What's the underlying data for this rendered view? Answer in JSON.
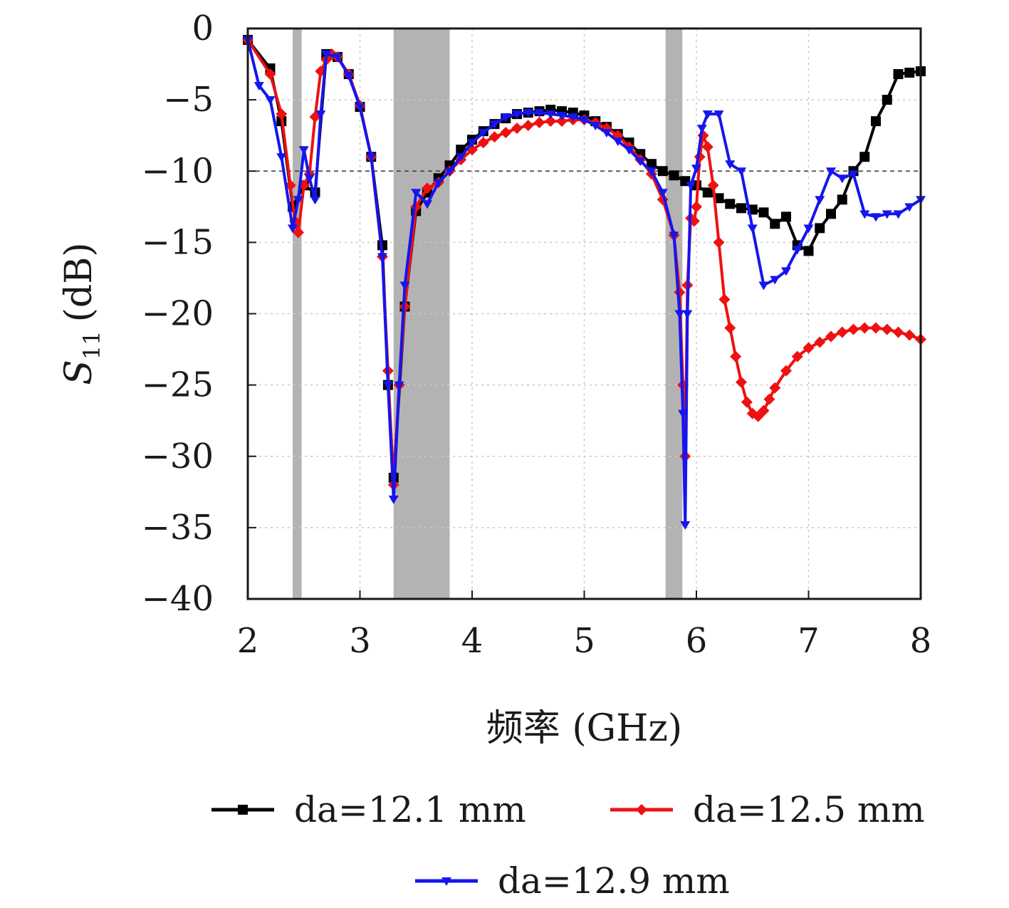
{
  "chart_data": {
    "type": "line",
    "xlabel": "频率 (GHz)",
    "ylabel": "S",
    "ylabel_sub": "11",
    "ylabel_unit": "(dB)",
    "xlim": [
      2,
      8
    ],
    "ylim": [
      -40,
      0
    ],
    "xticks": [
      2,
      3,
      4,
      5,
      6,
      7,
      8
    ],
    "yticks": [
      0,
      -5,
      -10,
      -15,
      -20,
      -25,
      -30,
      -35,
      -40
    ],
    "ytick_labels": [
      "0",
      "−5",
      "−10",
      "−15",
      "−20",
      "−25",
      "−30",
      "−35",
      "−40"
    ],
    "grid": true,
    "reference_line": -10,
    "shaded_bands": [
      [
        2.4,
        2.48
      ],
      [
        3.3,
        3.8
      ],
      [
        5.725,
        5.875
      ]
    ],
    "legend_position": "bottom",
    "series": [
      {
        "name": "da=12.1 mm",
        "color": "#000000",
        "marker": "square",
        "x": [
          2.0,
          2.2,
          2.3,
          2.4,
          2.5,
          2.6,
          2.7,
          2.8,
          2.9,
          3.0,
          3.1,
          3.2,
          3.25,
          3.3,
          3.4,
          3.5,
          3.6,
          3.7,
          3.8,
          3.9,
          4.0,
          4.1,
          4.2,
          4.3,
          4.4,
          4.5,
          4.6,
          4.7,
          4.8,
          4.9,
          5.0,
          5.1,
          5.2,
          5.3,
          5.4,
          5.5,
          5.6,
          5.7,
          5.8,
          5.9,
          6.0,
          6.1,
          6.2,
          6.3,
          6.4,
          6.5,
          6.6,
          6.7,
          6.8,
          6.9,
          7.0,
          7.1,
          7.2,
          7.3,
          7.4,
          7.5,
          7.6,
          7.7,
          7.8,
          7.9,
          8.0
        ],
        "y": [
          -0.8,
          -2.8,
          -6.5,
          -12.5,
          -11.0,
          -11.5,
          -1.8,
          -2.0,
          -3.2,
          -5.5,
          -9.0,
          -15.2,
          -25.0,
          -31.5,
          -19.5,
          -12.8,
          -11.5,
          -10.5,
          -9.6,
          -8.5,
          -7.8,
          -7.2,
          -6.7,
          -6.3,
          -6.0,
          -5.9,
          -5.8,
          -5.7,
          -5.8,
          -5.9,
          -6.1,
          -6.5,
          -6.9,
          -7.4,
          -8.0,
          -8.8,
          -9.5,
          -10.0,
          -10.3,
          -10.7,
          -11.0,
          -11.5,
          -11.9,
          -12.3,
          -12.6,
          -12.7,
          -12.9,
          -13.7,
          -13.2,
          -15.2,
          -15.6,
          -14.0,
          -13.0,
          -12.0,
          -10.0,
          -9.0,
          -6.5,
          -5.0,
          -3.2,
          -3.1,
          -3.0
        ]
      },
      {
        "name": "da=12.5 mm",
        "color": "#ee1111",
        "marker": "diamond",
        "x": [
          2.0,
          2.2,
          2.3,
          2.38,
          2.42,
          2.45,
          2.5,
          2.55,
          2.6,
          2.65,
          2.7,
          2.75,
          2.8,
          2.9,
          3.0,
          3.1,
          3.2,
          3.25,
          3.3,
          3.35,
          3.4,
          3.5,
          3.6,
          3.7,
          3.8,
          3.9,
          4.0,
          4.1,
          4.2,
          4.3,
          4.4,
          4.5,
          4.6,
          4.7,
          4.8,
          4.9,
          5.0,
          5.1,
          5.2,
          5.3,
          5.4,
          5.5,
          5.6,
          5.7,
          5.8,
          5.85,
          5.88,
          5.9,
          5.92,
          5.95,
          5.98,
          6.0,
          6.03,
          6.06,
          6.1,
          6.15,
          6.2,
          6.25,
          6.3,
          6.35,
          6.4,
          6.45,
          6.5,
          6.55,
          6.6,
          6.65,
          6.7,
          6.8,
          6.9,
          7.0,
          7.1,
          7.2,
          7.3,
          7.4,
          7.5,
          7.6,
          7.7,
          7.8,
          7.9,
          8.0
        ],
        "y": [
          -0.8,
          -3.2,
          -6.0,
          -11.0,
          -13.5,
          -14.3,
          -11.0,
          -10.2,
          -6.2,
          -3.0,
          -2.2,
          -1.8,
          -2.0,
          -3.2,
          -5.4,
          -9.0,
          -16.0,
          -24.0,
          -32.0,
          -25.0,
          -19.5,
          -12.5,
          -11.2,
          -10.8,
          -10.0,
          -9.2,
          -8.5,
          -8.0,
          -7.6,
          -7.3,
          -7.0,
          -6.8,
          -6.6,
          -6.5,
          -6.5,
          -6.4,
          -6.4,
          -6.6,
          -7.0,
          -7.5,
          -8.3,
          -9.2,
          -10.2,
          -12.0,
          -14.5,
          -18.5,
          -25.0,
          -30.0,
          -18.0,
          -13.3,
          -13.5,
          -12.5,
          -9.0,
          -7.5,
          -8.3,
          -11.0,
          -15.0,
          -19.0,
          -21.0,
          -23.0,
          -24.8,
          -26.2,
          -27.0,
          -27.2,
          -26.8,
          -26.0,
          -25.2,
          -24.0,
          -23.0,
          -22.4,
          -22.0,
          -21.6,
          -21.3,
          -21.1,
          -21.0,
          -21.0,
          -21.1,
          -21.3,
          -21.5,
          -21.8
        ]
      },
      {
        "name": "da=12.9 mm",
        "color": "#1515ee",
        "marker": "triangle-down",
        "x": [
          2.0,
          2.1,
          2.2,
          2.3,
          2.4,
          2.45,
          2.5,
          2.55,
          2.6,
          2.65,
          2.7,
          2.8,
          2.9,
          3.0,
          3.1,
          3.2,
          3.25,
          3.3,
          3.35,
          3.4,
          3.5,
          3.6,
          3.7,
          3.8,
          3.9,
          4.0,
          4.1,
          4.2,
          4.3,
          4.4,
          4.5,
          4.6,
          4.7,
          4.8,
          4.9,
          5.0,
          5.1,
          5.2,
          5.3,
          5.4,
          5.5,
          5.6,
          5.7,
          5.8,
          5.85,
          5.88,
          5.9,
          5.92,
          5.95,
          6.0,
          6.05,
          6.1,
          6.2,
          6.3,
          6.4,
          6.5,
          6.6,
          6.7,
          6.8,
          6.9,
          7.0,
          7.1,
          7.2,
          7.3,
          7.4,
          7.5,
          7.6,
          7.7,
          7.8,
          7.9,
          8.0
        ],
        "y": [
          -0.8,
          -4.0,
          -5.0,
          -9.0,
          -14.0,
          -12.0,
          -8.5,
          -10.5,
          -12.0,
          -6.0,
          -1.8,
          -2.0,
          -3.3,
          -5.5,
          -9.0,
          -16.0,
          -25.0,
          -33.0,
          -25.0,
          -18.0,
          -11.5,
          -12.3,
          -10.8,
          -10.0,
          -9.0,
          -8.0,
          -7.3,
          -6.7,
          -6.2,
          -6.0,
          -5.9,
          -5.9,
          -6.0,
          -6.1,
          -6.2,
          -6.4,
          -6.8,
          -7.3,
          -7.9,
          -8.5,
          -9.3,
          -10.0,
          -11.5,
          -14.5,
          -20.0,
          -27.0,
          -34.8,
          -20.0,
          -11.0,
          -9.8,
          -7.0,
          -6.0,
          -6.0,
          -9.5,
          -10.0,
          -14.0,
          -18.0,
          -17.6,
          -17.0,
          -15.5,
          -14.0,
          -12.0,
          -10.0,
          -10.5,
          -10.2,
          -13.0,
          -13.2,
          -13.0,
          -13.0,
          -12.5,
          -12.0
        ]
      }
    ]
  }
}
